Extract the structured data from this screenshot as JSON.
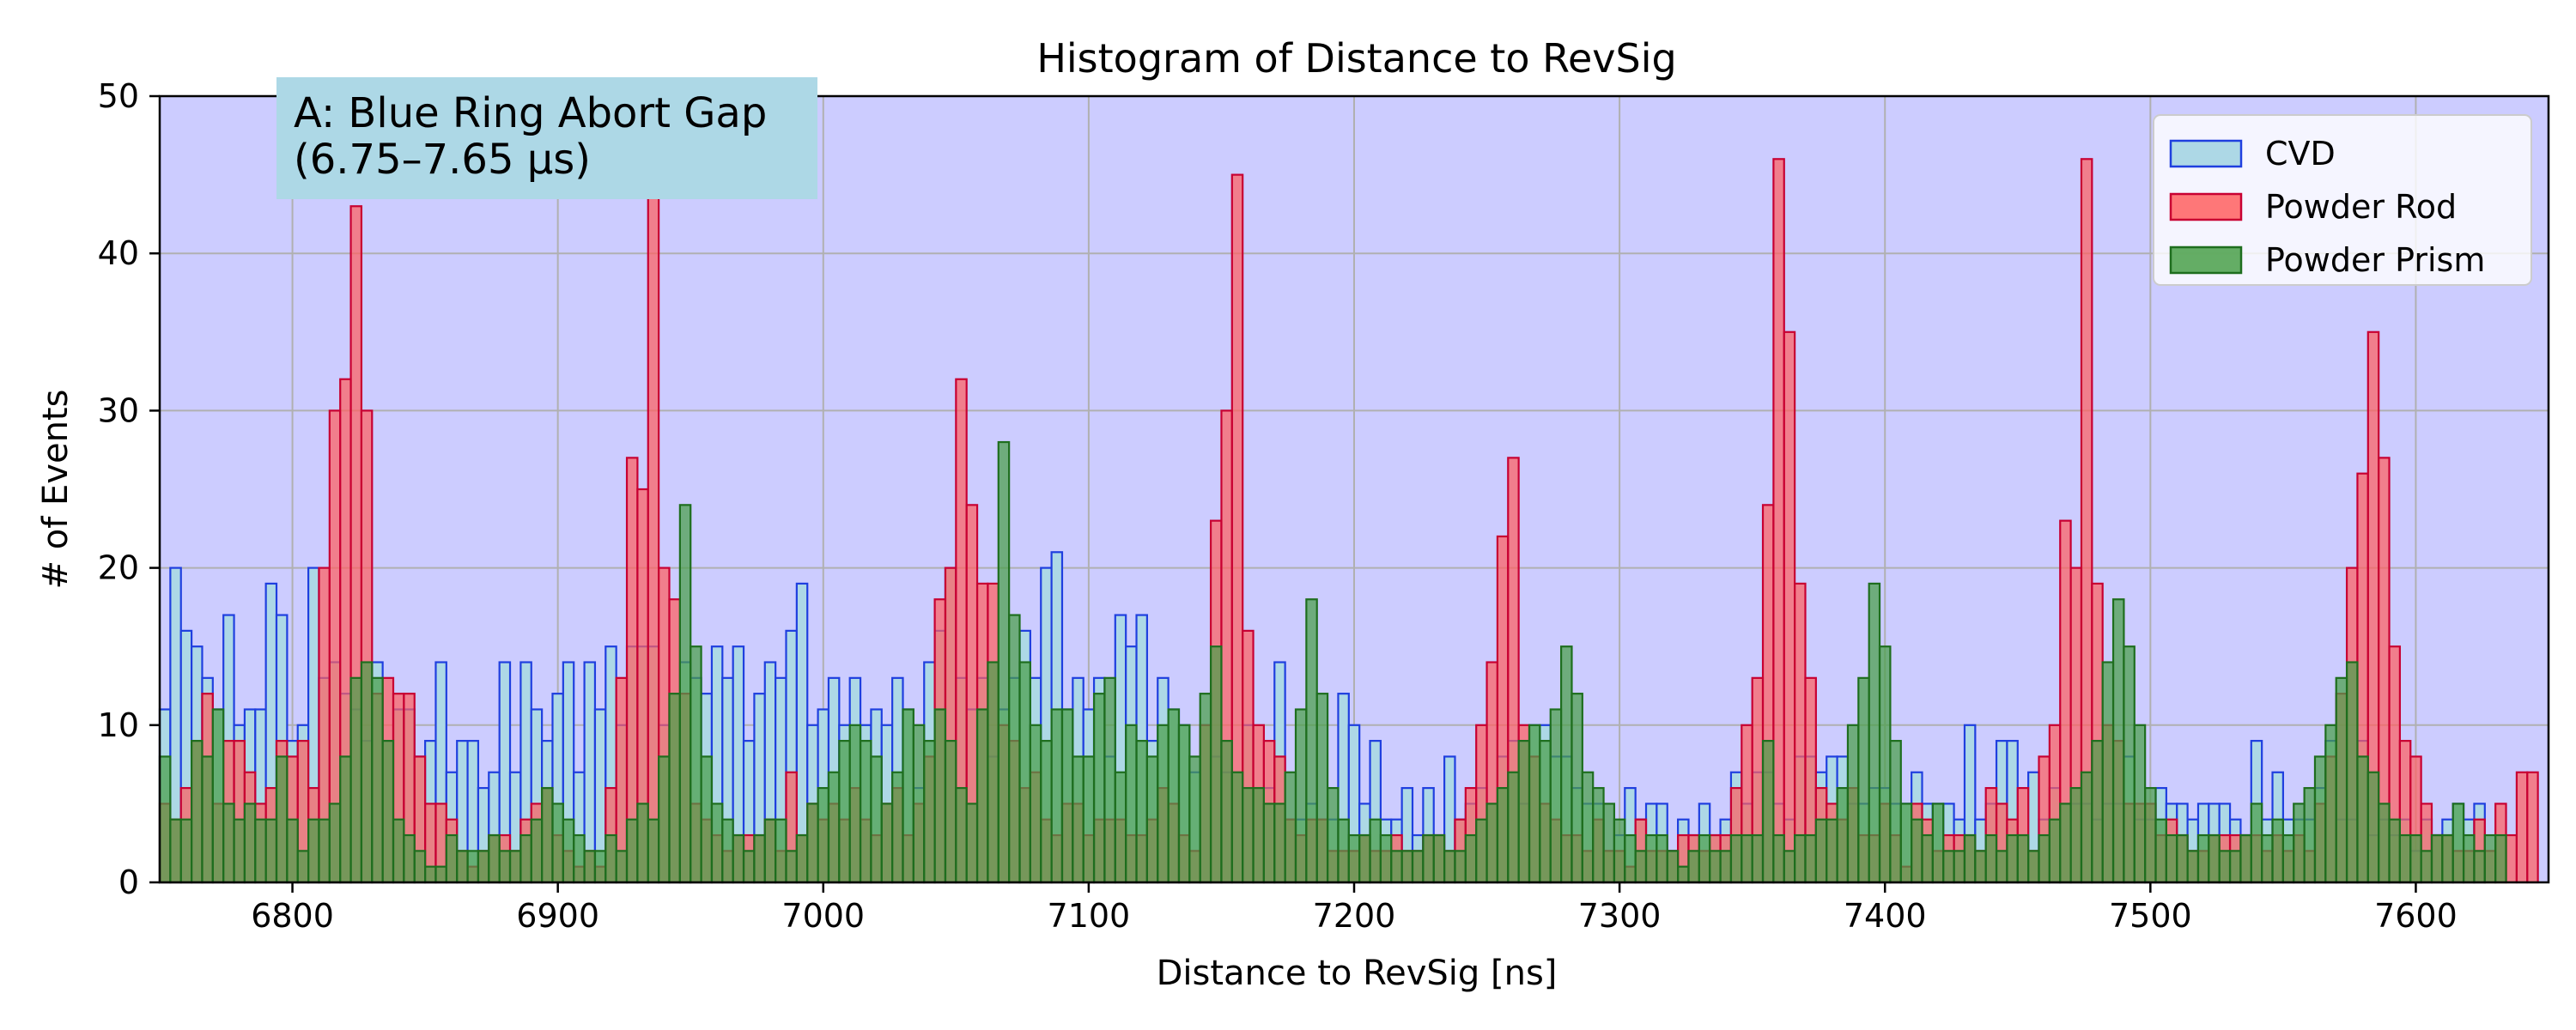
{
  "chart_data": {
    "type": "histogram",
    "title": "Histogram of Distance to RevSig",
    "xlabel": "Distance to RevSig [ns]",
    "ylabel": "# of Events",
    "xlim": [
      6750,
      7650
    ],
    "ylim": [
      0,
      50
    ],
    "bin_width": 4,
    "x_ticks": [
      6800,
      6900,
      7000,
      7100,
      7200,
      7300,
      7400,
      7500,
      7600
    ],
    "y_ticks": [
      0,
      10,
      20,
      30,
      40,
      50
    ],
    "grid": true,
    "background_color": "#ccccff",
    "annotation": {
      "line1": "A: Blue Ring Abort Gap",
      "line2": "(6.75–7.65 µs)",
      "box_color": "#add8e6",
      "placement": "top-left"
    },
    "legend_placement": "top-right",
    "bin_edges_start": 6750,
    "series": [
      {
        "name": "CVD",
        "face_color": "#add8e6",
        "edge_color": "#1f3fdf",
        "values": [
          11,
          20,
          16,
          15,
          13,
          11,
          17,
          10,
          11,
          11,
          19,
          17,
          9,
          10,
          20,
          13,
          14,
          12,
          11,
          9,
          14,
          9,
          11,
          11,
          8,
          9,
          14,
          7,
          9,
          9,
          6,
          7,
          14,
          7,
          14,
          11,
          9,
          12,
          14,
          7,
          14,
          11,
          15,
          10,
          15,
          15,
          15,
          10,
          12,
          14,
          13,
          12,
          15,
          13,
          15,
          9,
          12,
          14,
          13,
          16,
          19,
          10,
          11,
          13,
          10,
          13,
          10,
          11,
          10,
          13,
          11,
          6,
          14,
          16,
          20,
          13,
          11,
          13,
          8,
          11,
          13,
          16,
          13,
          20,
          21,
          11,
          13,
          11,
          13,
          8,
          17,
          15,
          17,
          9,
          13,
          11,
          10,
          7,
          10,
          8,
          7,
          7,
          10,
          6,
          6,
          14,
          4,
          4,
          5,
          4,
          4,
          12,
          10,
          5,
          9,
          4,
          4,
          6,
          3,
          6,
          3,
          8,
          4,
          5,
          6,
          5,
          8,
          9,
          5,
          10,
          10,
          8,
          8,
          6,
          5,
          5,
          2,
          3,
          6,
          4,
          5,
          5,
          2,
          4,
          3,
          5,
          3,
          4,
          7,
          5,
          7,
          7,
          5,
          4,
          8,
          8,
          7,
          8,
          8,
          5,
          5,
          6,
          6,
          5,
          5,
          7,
          5,
          5,
          5,
          4,
          10,
          4,
          5,
          9,
          9,
          3,
          7,
          4,
          6,
          5,
          5,
          5,
          4,
          5,
          5,
          8,
          4,
          4,
          6,
          5,
          5,
          4,
          5,
          5,
          5,
          4,
          3,
          9,
          4,
          7,
          4,
          4,
          4,
          6,
          9,
          4,
          4,
          9,
          3,
          4,
          3,
          4,
          2,
          4,
          3,
          4,
          5,
          4,
          5
        ]
      },
      {
        "name": "Powder Rod",
        "face_color": "#ff6060",
        "edge_color": "#c80032",
        "values": [
          5,
          4,
          6,
          9,
          12,
          5,
          9,
          9,
          7,
          5,
          6,
          9,
          8,
          9,
          6,
          20,
          30,
          32,
          43,
          30,
          12,
          13,
          12,
          12,
          8,
          5,
          5,
          4,
          2,
          1,
          2,
          3,
          3,
          2,
          4,
          5,
          6,
          3,
          2,
          1,
          2,
          1,
          6,
          13,
          27,
          25,
          44,
          20,
          18,
          12,
          5,
          4,
          3,
          2,
          3,
          3,
          3,
          4,
          2,
          7,
          3,
          5,
          4,
          5,
          4,
          6,
          4,
          3,
          5,
          6,
          3,
          5,
          8,
          18,
          20,
          32,
          24,
          19,
          19,
          10,
          9,
          6,
          7,
          4,
          3,
          5,
          5,
          3,
          4,
          4,
          4,
          3,
          3,
          4,
          6,
          5,
          3,
          2,
          10,
          23,
          30,
          45,
          16,
          10,
          9,
          8,
          4,
          3,
          4,
          4,
          2,
          2,
          2,
          3,
          2,
          2,
          3,
          2,
          2,
          3,
          3,
          2,
          4,
          6,
          10,
          14,
          22,
          27,
          10,
          8,
          5,
          4,
          3,
          3,
          2,
          4,
          2,
          2,
          1,
          4,
          2,
          2,
          2,
          3,
          3,
          2,
          3,
          3,
          6,
          10,
          13,
          24,
          46,
          35,
          19,
          13,
          6,
          5,
          4,
          6,
          3,
          3,
          5,
          3,
          1,
          5,
          4,
          2,
          3,
          3,
          3,
          2,
          6,
          5,
          4,
          6,
          2,
          8,
          10,
          23,
          20,
          46,
          19,
          10,
          9,
          5,
          5,
          5,
          3,
          4,
          3,
          2,
          2,
          3,
          3,
          3,
          3,
          3,
          2,
          3,
          2,
          3,
          2,
          5,
          8,
          12,
          20,
          26,
          35,
          27,
          15,
          9,
          8,
          5,
          3,
          3,
          2,
          2,
          4,
          2,
          5,
          3,
          7,
          7
        ]
      },
      {
        "name": "Powder Prism",
        "face_color": "#4aa04a",
        "edge_color": "#1e6e1e",
        "values": [
          8,
          4,
          4,
          9,
          8,
          11,
          5,
          4,
          5,
          4,
          4,
          8,
          4,
          2,
          4,
          4,
          5,
          8,
          13,
          14,
          13,
          9,
          4,
          3,
          2,
          1,
          1,
          3,
          2,
          2,
          2,
          3,
          2,
          2,
          3,
          4,
          6,
          5,
          4,
          3,
          2,
          2,
          3,
          2,
          4,
          5,
          4,
          8,
          12,
          24,
          15,
          8,
          5,
          4,
          3,
          2,
          3,
          4,
          4,
          2,
          3,
          5,
          6,
          7,
          9,
          10,
          9,
          8,
          5,
          7,
          11,
          10,
          9,
          11,
          9,
          6,
          5,
          11,
          14,
          28,
          17,
          14,
          10,
          9,
          11,
          11,
          8,
          8,
          12,
          13,
          7,
          10,
          9,
          8,
          10,
          11,
          10,
          8,
          12,
          15,
          9,
          7,
          6,
          6,
          5,
          5,
          7,
          11,
          18,
          12,
          6,
          4,
          3,
          3,
          4,
          3,
          2,
          2,
          2,
          3,
          3,
          2,
          2,
          3,
          4,
          5,
          6,
          7,
          9,
          10,
          9,
          11,
          15,
          12,
          7,
          6,
          5,
          4,
          3,
          2,
          3,
          3,
          2,
          1,
          2,
          3,
          2,
          2,
          3,
          3,
          3,
          9,
          3,
          2,
          3,
          3,
          4,
          4,
          6,
          10,
          13,
          19,
          15,
          9,
          5,
          4,
          3,
          5,
          2,
          2,
          3,
          2,
          3,
          2,
          3,
          3,
          2,
          3,
          4,
          5,
          6,
          7,
          9,
          14,
          18,
          15,
          10,
          6,
          4,
          3,
          3,
          2,
          3,
          3,
          2,
          2,
          3,
          5,
          3,
          4,
          3,
          5,
          6,
          8,
          10,
          13,
          14,
          8,
          7,
          5,
          4,
          3,
          3,
          2,
          3,
          3,
          5,
          3,
          2,
          3,
          3
        ]
      }
    ]
  }
}
